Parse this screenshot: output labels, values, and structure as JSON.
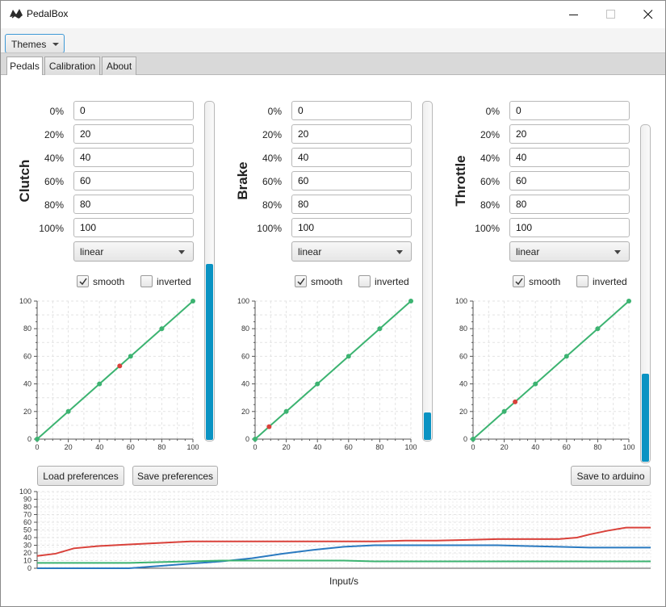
{
  "window": {
    "title": "PedalBox"
  },
  "menu": {
    "themes_label": "Themes"
  },
  "tabs": [
    {
      "label": "Pedals",
      "active": true
    },
    {
      "label": "Calibration",
      "active": false
    },
    {
      "label": "About",
      "active": false
    }
  ],
  "pedals": [
    {
      "name": "Clutch",
      "rows": [
        {
          "label": "0%",
          "value": "0"
        },
        {
          "label": "20%",
          "value": "20"
        },
        {
          "label": "40%",
          "value": "40"
        },
        {
          "label": "60%",
          "value": "60"
        },
        {
          "label": "80%",
          "value": "80"
        },
        {
          "label": "100%",
          "value": "100"
        }
      ],
      "curve": "linear",
      "smooth_label": "smooth",
      "smooth": true,
      "inverted_label": "inverted",
      "inverted": false,
      "level": 0.52
    },
    {
      "name": "Brake",
      "rows": [
        {
          "label": "0%",
          "value": "0"
        },
        {
          "label": "20%",
          "value": "20"
        },
        {
          "label": "40%",
          "value": "40"
        },
        {
          "label": "60%",
          "value": "60"
        },
        {
          "label": "80%",
          "value": "80"
        },
        {
          "label": "100%",
          "value": "100"
        }
      ],
      "curve": "linear",
      "smooth_label": "smooth",
      "smooth": true,
      "inverted_label": "inverted",
      "inverted": false,
      "level": 0.08
    },
    {
      "name": "Throttle",
      "rows": [
        {
          "label": "0%",
          "value": "0"
        },
        {
          "label": "20%",
          "value": "20"
        },
        {
          "label": "40%",
          "value": "40"
        },
        {
          "label": "60%",
          "value": "60"
        },
        {
          "label": "80%",
          "value": "80"
        },
        {
          "label": "100%",
          "value": "100"
        }
      ],
      "curve": "linear",
      "smooth_label": "smooth",
      "smooth": true,
      "inverted_label": "inverted",
      "inverted": false,
      "level": 0.26
    }
  ],
  "buttons": {
    "load": "Load preferences",
    "save": "Save preferences",
    "arduino": "Save to arduino"
  },
  "chart_data": [
    {
      "type": "line",
      "title": "Clutch",
      "xlim": [
        0,
        100
      ],
      "ylim": [
        0,
        100
      ],
      "ticks": [
        0,
        20,
        40,
        60,
        80,
        100
      ],
      "grid": true,
      "line_color": "#3cb371",
      "x": [
        0,
        20,
        40,
        60,
        80,
        100
      ],
      "y": [
        0,
        20,
        40,
        60,
        80,
        100
      ],
      "current": {
        "x": 53,
        "y": 53,
        "color": "#d9413a"
      }
    },
    {
      "type": "line",
      "title": "Brake",
      "xlim": [
        0,
        100
      ],
      "ylim": [
        0,
        100
      ],
      "ticks": [
        0,
        20,
        40,
        60,
        80,
        100
      ],
      "grid": true,
      "line_color": "#3cb371",
      "x": [
        0,
        20,
        40,
        60,
        80,
        100
      ],
      "y": [
        0,
        20,
        40,
        60,
        80,
        100
      ],
      "current": {
        "x": 9,
        "y": 9,
        "color": "#d9413a"
      }
    },
    {
      "type": "line",
      "title": "Throttle",
      "xlim": [
        0,
        100
      ],
      "ylim": [
        0,
        100
      ],
      "ticks": [
        0,
        20,
        40,
        60,
        80,
        100
      ],
      "grid": true,
      "line_color": "#3cb371",
      "x": [
        0,
        20,
        40,
        60,
        80,
        100
      ],
      "y": [
        0,
        20,
        40,
        60,
        80,
        100
      ],
      "current": {
        "x": 27,
        "y": 27,
        "color": "#d9413a"
      }
    },
    {
      "type": "line",
      "xlabel": "Input/s",
      "ylim": [
        0,
        100
      ],
      "xlim": [
        0,
        100
      ],
      "yticks": [
        0,
        10,
        20,
        30,
        40,
        50,
        60,
        70,
        80,
        90,
        100
      ],
      "grid": true,
      "series": [
        {
          "color": "#d9413a",
          "x": [
            0,
            3,
            6,
            10,
            15,
            20,
            25,
            30,
            35,
            40,
            45,
            50,
            55,
            60,
            65,
            70,
            75,
            80,
            85,
            88,
            90,
            93,
            96,
            100
          ],
          "y": [
            16,
            19,
            26,
            29,
            31,
            33,
            35,
            35,
            35,
            35,
            35,
            35,
            35,
            36,
            36,
            37,
            38,
            38,
            38,
            40,
            44,
            49,
            53,
            53
          ]
        },
        {
          "color": "#2a7ac0",
          "x": [
            0,
            10,
            15,
            20,
            25,
            30,
            35,
            40,
            45,
            50,
            55,
            60,
            65,
            70,
            75,
            80,
            85,
            90,
            95,
            100
          ],
          "y": [
            0,
            0,
            0,
            3,
            6,
            9,
            13,
            19,
            24,
            28,
            30,
            30,
            30,
            30,
            30,
            29,
            28,
            27,
            27,
            27
          ]
        },
        {
          "color": "#3cb371",
          "x": [
            0,
            10,
            15,
            20,
            25,
            30,
            35,
            40,
            45,
            50,
            55,
            60,
            65,
            70,
            75,
            80,
            85,
            90,
            95,
            100
          ],
          "y": [
            7,
            7,
            7,
            8,
            9,
            10,
            10,
            10,
            10,
            10,
            9,
            9,
            9,
            9,
            9,
            9,
            9,
            9,
            9,
            9
          ]
        }
      ]
    }
  ]
}
